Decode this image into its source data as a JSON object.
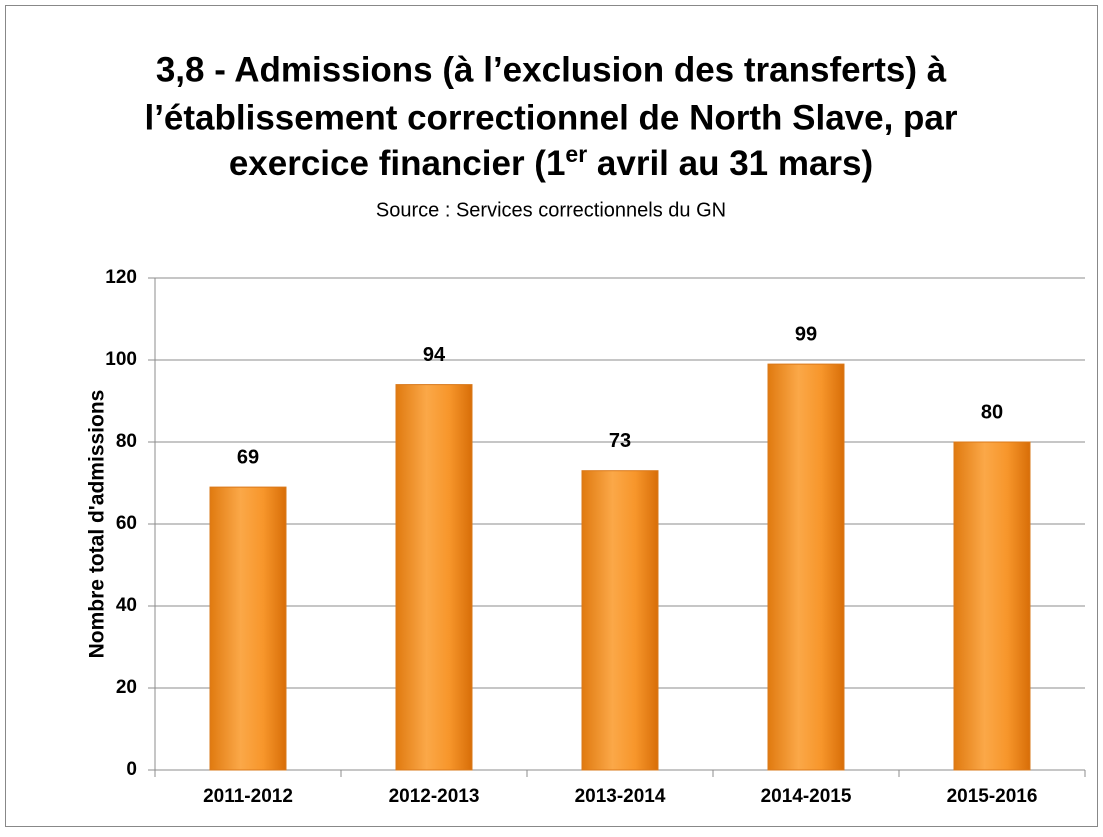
{
  "chart_data": {
    "type": "bar",
    "title": [
      "3,8 - Admissions (à l’exclusion des transferts) à",
      "l’établissement correctionnel de North Slave, par",
      "exercice financier (1"
    ],
    "title_superscript": "er",
    "title_end": " avril au 31 mars)",
    "subtitle": "Source : Services correctionnels du GN",
    "y_label": "Nombre total d'admissions",
    "categories": [
      "2011-2012",
      "2012-2013",
      "2013-2014",
      "2014-2015",
      "2015-2016"
    ],
    "values": [
      69,
      94,
      73,
      99,
      80
    ],
    "color": "#f7962b",
    "ylim": [
      0,
      120
    ],
    "yticks": [
      0,
      20,
      40,
      60,
      80,
      100,
      120
    ],
    "grid": true
  }
}
